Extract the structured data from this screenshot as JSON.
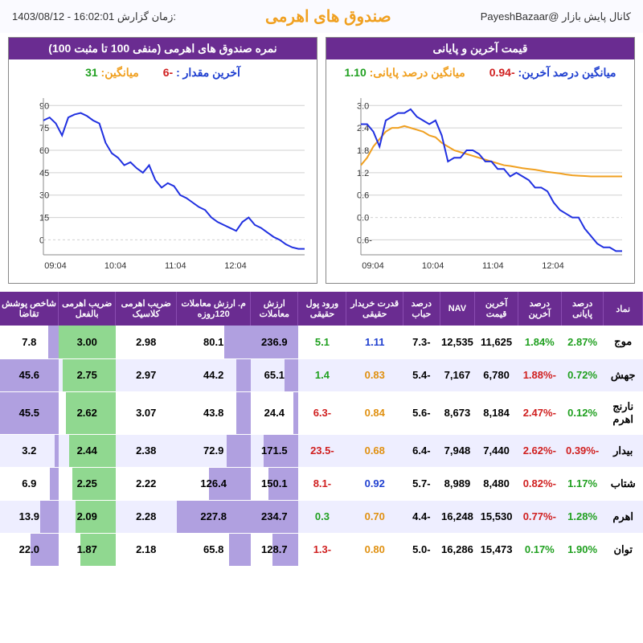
{
  "header": {
    "channel": "کانال پایش بازار   @PayeshBazaar",
    "title": "صندوق های اهرمی",
    "time_label": "زمان گزارش:",
    "time_value": "1403/08/12 - 16:02:01"
  },
  "chart_right": {
    "title": "قیمت آخرین و پایانی",
    "stat1_label": "میانگین درصد آخرین:",
    "stat1_value": "-0.94",
    "stat2_label": "میانگین درصد پایانی:",
    "stat2_value": "1.10",
    "yticks": [
      -0.6,
      0.0,
      0.6,
      1.2,
      1.8,
      2.4,
      3.0
    ],
    "xticks": [
      "09:04",
      "10:04",
      "11:04",
      "12:04"
    ],
    "ylim": [
      -1.0,
      3.2
    ],
    "series_blue": [
      2.5,
      2.5,
      2.3,
      1.9,
      2.6,
      2.7,
      2.8,
      2.8,
      2.9,
      2.7,
      2.6,
      2.5,
      2.6,
      2.2,
      1.5,
      1.6,
      1.6,
      1.8,
      1.8,
      1.7,
      1.5,
      1.5,
      1.3,
      1.3,
      1.1,
      1.2,
      1.1,
      1.0,
      0.8,
      0.8,
      0.7,
      0.4,
      0.2,
      0.1,
      0.0,
      0.0,
      -0.3,
      -0.5,
      -0.7,
      -0.8,
      -0.8,
      -0.9,
      -0.9
    ],
    "series_orange": [
      1.4,
      1.6,
      1.9,
      2.1,
      2.3,
      2.4,
      2.4,
      2.45,
      2.4,
      2.35,
      2.3,
      2.2,
      2.15,
      2.0,
      1.9,
      1.8,
      1.75,
      1.7,
      1.65,
      1.6,
      1.55,
      1.5,
      1.45,
      1.4,
      1.38,
      1.35,
      1.32,
      1.3,
      1.28,
      1.25,
      1.22,
      1.2,
      1.18,
      1.15,
      1.13,
      1.12,
      1.11,
      1.1,
      1.1,
      1.1,
      1.1,
      1.1,
      1.1
    ],
    "line_color_blue": "#2030e0",
    "line_color_orange": "#f0a020",
    "grid_color": "#d0d0d0",
    "axis_color": "#888"
  },
  "chart_left": {
    "title": "نمره صندوق های اهرمی (منفی 100 تا مثبت 100)",
    "stat1_label": "آخرین مقدار :",
    "stat1_value": "-6",
    "stat2_label": "میانگین:",
    "stat2_value": "31",
    "yticks": [
      0,
      15,
      30,
      45,
      60,
      75,
      90
    ],
    "xticks": [
      "09:04",
      "10:04",
      "11:04",
      "12:04"
    ],
    "ylim": [
      -10,
      95
    ],
    "series_blue": [
      80,
      82,
      78,
      70,
      82,
      84,
      85,
      83,
      80,
      78,
      65,
      58,
      55,
      50,
      52,
      48,
      45,
      50,
      40,
      35,
      38,
      36,
      30,
      28,
      25,
      22,
      20,
      15,
      12,
      10,
      8,
      6,
      12,
      15,
      10,
      8,
      5,
      2,
      0,
      -3,
      -5,
      -6,
      -6
    ],
    "line_color_blue": "#2030e0",
    "grid_color": "#d0d0d0",
    "axis_color": "#888"
  },
  "table": {
    "columns": [
      "نماد",
      "درصد پایانی",
      "درصد آخرین",
      "آخرین قیمت",
      "NAV",
      "درصد حباب",
      "قدرت خریدار حقیقی",
      "ورود پول حقیقی",
      "ارزش معاملات",
      "م. ارزش معاملات 120روزه",
      "ضریب اهرمی کلاسیک",
      "ضریب اهرمی بالفعل",
      "شاخص پوشش تقاضا"
    ],
    "rows": [
      {
        "sym": "موج",
        "closing": "2.87%",
        "closing_c": "green",
        "last": "1.84%",
        "last_c": "green",
        "price": "11,625",
        "nav": "12,535",
        "bubble": "-7.3",
        "power": "1.11",
        "power_c": "blue",
        "inflow": "5.1",
        "inflow_c": "green",
        "vol": "236.9",
        "vol_bar": 100,
        "avg120": "80.1",
        "avg120_bar": 35,
        "classic": "2.98",
        "actual": "3.00",
        "actual_bar": 100,
        "demand": "7.8",
        "demand_bar": 17
      },
      {
        "sym": "جهش",
        "closing": "0.72%",
        "closing_c": "green",
        "last": "-1.88%",
        "last_c": "red",
        "price": "6,780",
        "nav": "7,167",
        "bubble": "-5.4",
        "power": "0.83",
        "power_c": "orange",
        "inflow": "1.4",
        "inflow_c": "green",
        "vol": "65.1",
        "vol_bar": 28,
        "avg120": "44.2",
        "avg120_bar": 19,
        "classic": "2.97",
        "actual": "2.75",
        "actual_bar": 92,
        "demand": "45.6",
        "demand_bar": 100
      },
      {
        "sym": "نارنج اهرم",
        "closing": "0.12%",
        "closing_c": "green",
        "last": "-2.47%",
        "last_c": "red",
        "price": "8,184",
        "nav": "8,673",
        "bubble": "-5.6",
        "power": "0.84",
        "power_c": "orange",
        "inflow": "-6.3",
        "inflow_c": "red",
        "vol": "24.4",
        "vol_bar": 10,
        "avg120": "43.8",
        "avg120_bar": 19,
        "classic": "3.07",
        "actual": "2.62",
        "actual_bar": 87,
        "demand": "45.5",
        "demand_bar": 100
      },
      {
        "sym": "بیدار",
        "closing": "-0.39%",
        "closing_c": "red",
        "last": "-2.62%",
        "last_c": "red",
        "price": "7,440",
        "nav": "7,948",
        "bubble": "-6.4",
        "power": "0.68",
        "power_c": "orange",
        "inflow": "-23.5",
        "inflow_c": "red",
        "vol": "171.5",
        "vol_bar": 72,
        "avg120": "72.9",
        "avg120_bar": 32,
        "classic": "2.38",
        "actual": "2.44",
        "actual_bar": 81,
        "demand": "3.2",
        "demand_bar": 7
      },
      {
        "sym": "شتاب",
        "closing": "1.17%",
        "closing_c": "green",
        "last": "-0.82%",
        "last_c": "red",
        "price": "8,480",
        "nav": "8,989",
        "bubble": "-5.7",
        "power": "0.92",
        "power_c": "blue",
        "inflow": "-8.1",
        "inflow_c": "red",
        "vol": "150.1",
        "vol_bar": 63,
        "avg120": "126.4",
        "avg120_bar": 56,
        "classic": "2.22",
        "actual": "2.25",
        "actual_bar": 75,
        "demand": "6.9",
        "demand_bar": 15
      },
      {
        "sym": "اهرم",
        "closing": "1.28%",
        "closing_c": "green",
        "last": "-0.77%",
        "last_c": "red",
        "price": "15,530",
        "nav": "16,248",
        "bubble": "-4.4",
        "power": "0.70",
        "power_c": "orange",
        "inflow": "0.3",
        "inflow_c": "green",
        "vol": "234.7",
        "vol_bar": 99,
        "avg120": "227.8",
        "avg120_bar": 100,
        "classic": "2.28",
        "actual": "2.09",
        "actual_bar": 70,
        "demand": "13.9",
        "demand_bar": 31
      },
      {
        "sym": "توان",
        "closing": "1.90%",
        "closing_c": "green",
        "last": "0.17%",
        "last_c": "green",
        "price": "15,473",
        "nav": "16,286",
        "bubble": "-5.0",
        "power": "0.80",
        "power_c": "orange",
        "inflow": "-1.3",
        "inflow_c": "red",
        "vol": "128.7",
        "vol_bar": 54,
        "avg120": "65.8",
        "avg120_bar": 29,
        "classic": "2.18",
        "actual": "1.87",
        "actual_bar": 62,
        "demand": "22.0",
        "demand_bar": 48
      }
    ]
  }
}
